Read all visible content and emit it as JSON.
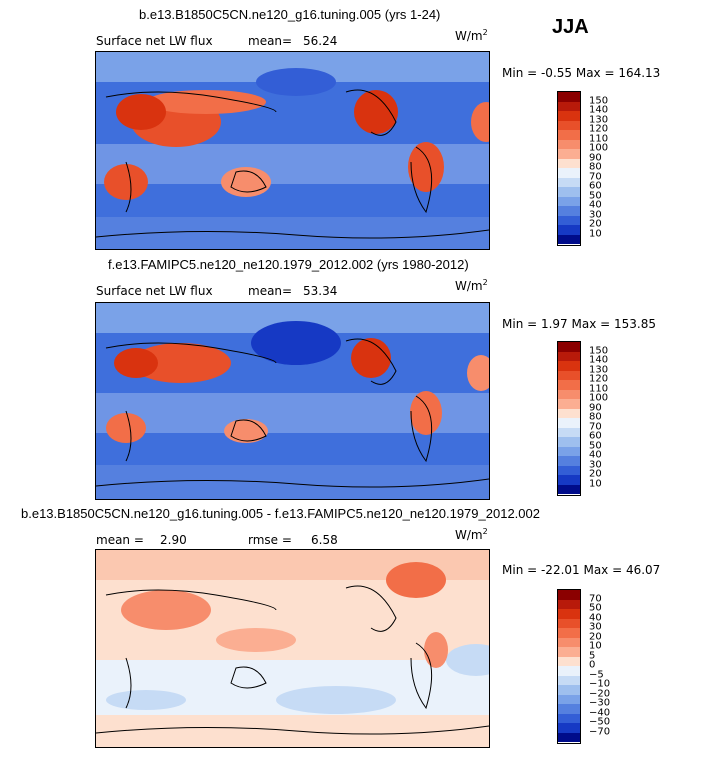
{
  "season": "JJA",
  "unit_base": "W/m",
  "unit_exp": "2",
  "panels": [
    {
      "title": "b.e13.B1850C5CN.ne120_g16.tuning.005 (yrs 1-24)",
      "varname": "Surface net LW flux",
      "mean_label": "mean=",
      "mean_value": "56.24",
      "minmax": "Min =   -0.55 Max = 164.13",
      "colorbar": {
        "labels": [
          "150",
          "140",
          "130",
          "120",
          "110",
          "100",
          "90",
          "80",
          "70",
          "60",
          "50",
          "40",
          "30",
          "20",
          "10"
        ],
        "colors": [
          "#8b0000",
          "#b81a0a",
          "#d9330f",
          "#e8502a",
          "#f26e48",
          "#f78d6c",
          "#fbae92",
          "#fde0cf",
          "#eaf2fb",
          "#c6dbf5",
          "#9ebfee",
          "#7aa2e8",
          "#5580df",
          "#335ed6",
          "#1639c4",
          "#000c8a"
        ]
      }
    },
    {
      "title": "f.e13.FAMIPC5.ne120_ne120.1979_2012.002 (yrs 1980-2012)",
      "varname": "Surface net LW flux",
      "mean_label": "mean=",
      "mean_value": "53.34",
      "minmax": "Min =    1.97 Max = 153.85",
      "colorbar": {
        "labels": [
          "150",
          "140",
          "130",
          "120",
          "110",
          "100",
          "90",
          "80",
          "70",
          "60",
          "50",
          "40",
          "30",
          "20",
          "10"
        ],
        "colors": [
          "#8b0000",
          "#b81a0a",
          "#d9330f",
          "#e8502a",
          "#f26e48",
          "#f78d6c",
          "#fbae92",
          "#fde0cf",
          "#eaf2fb",
          "#c6dbf5",
          "#9ebfee",
          "#7aa2e8",
          "#5580df",
          "#335ed6",
          "#1639c4",
          "#000c8a"
        ]
      }
    },
    {
      "title": "b.e13.B1850C5CN.ne120_g16.tuning.005 - f.e13.FAMIPC5.ne120_ne120.1979_2012.002",
      "mean_label": "mean =",
      "mean_value": "2.90",
      "rmse_label": "rmse =",
      "rmse_value": "6.58",
      "minmax": "Min = -22.01 Max =  46.07",
      "colorbar": {
        "labels": [
          "70",
          "50",
          "40",
          "30",
          "20",
          "10",
          "5",
          "0",
          "−5",
          "−10",
          "−20",
          "−30",
          "−40",
          "−50",
          "−70"
        ],
        "colors": [
          "#8b0000",
          "#b81a0a",
          "#d9330f",
          "#e8502a",
          "#f26e48",
          "#f78d6c",
          "#fbae92",
          "#fde0cf",
          "#eaf2fb",
          "#c6dbf5",
          "#9ebfee",
          "#7aa2e8",
          "#5580df",
          "#335ed6",
          "#1639c4",
          "#000c8a"
        ]
      }
    }
  ]
}
